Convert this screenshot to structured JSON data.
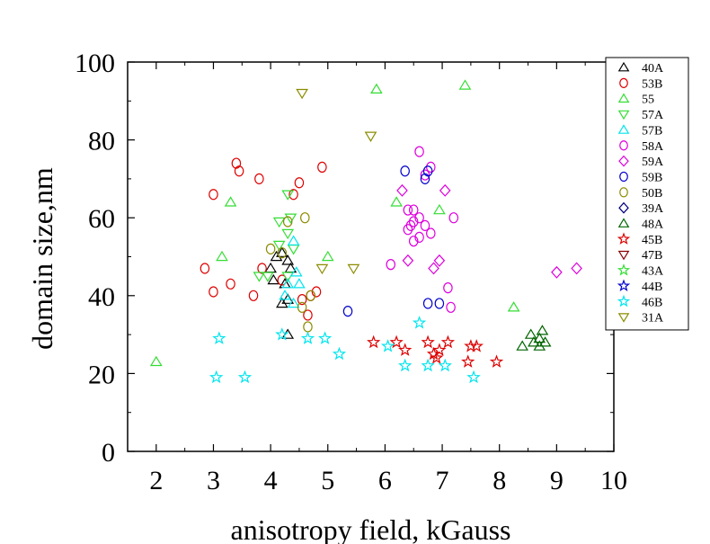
{
  "chart_data": {
    "type": "scatter",
    "title": "",
    "xlabel": "anisotropy field, kGauss",
    "ylabel": "domain size,nm",
    "xlim": [
      1.5,
      10
    ],
    "ylim": [
      0,
      100
    ],
    "xticks": [
      2,
      3,
      4,
      5,
      6,
      7,
      8,
      9,
      10
    ],
    "yticks": [
      0,
      20,
      40,
      60,
      80,
      100
    ],
    "grid": false,
    "legend_position": "right",
    "series": [
      {
        "name": "40A",
        "marker": "triangle-up",
        "color": "#000000",
        "points": [
          [
            4.0,
            47
          ],
          [
            4.1,
            50
          ],
          [
            4.2,
            51
          ],
          [
            4.3,
            49
          ],
          [
            4.35,
            47
          ],
          [
            4.05,
            44
          ],
          [
            4.25,
            43
          ],
          [
            4.3,
            39
          ],
          [
            4.2,
            38
          ],
          [
            4.3,
            30
          ]
        ]
      },
      {
        "name": "53B",
        "marker": "circle",
        "color": "#dd0000",
        "points": [
          [
            3.4,
            74
          ],
          [
            3.45,
            72
          ],
          [
            3.8,
            70
          ],
          [
            3.0,
            66
          ],
          [
            4.4,
            66
          ],
          [
            4.5,
            69
          ],
          [
            4.9,
            73
          ],
          [
            2.85,
            47
          ],
          [
            3.85,
            47
          ],
          [
            3.3,
            43
          ],
          [
            3.0,
            41
          ],
          [
            3.7,
            40
          ],
          [
            4.55,
            39
          ],
          [
            4.7,
            40
          ],
          [
            4.8,
            41
          ],
          [
            4.65,
            35
          ],
          [
            4.2,
            44
          ]
        ]
      },
      {
        "name": "55",
        "marker": "triangle-up",
        "color": "#33dd33",
        "points": [
          [
            5.85,
            93
          ],
          [
            7.4,
            94
          ],
          [
            3.3,
            64
          ],
          [
            6.2,
            64
          ],
          [
            6.95,
            62
          ],
          [
            3.15,
            50
          ],
          [
            5.0,
            50
          ],
          [
            8.25,
            37
          ],
          [
            2.0,
            23
          ]
        ]
      },
      {
        "name": "57A",
        "marker": "triangle-down",
        "color": "#33dd33",
        "points": [
          [
            4.3,
            66
          ],
          [
            4.15,
            59
          ],
          [
            4.35,
            60
          ],
          [
            4.3,
            56
          ],
          [
            4.15,
            53
          ],
          [
            4.4,
            52
          ],
          [
            3.8,
            45
          ],
          [
            3.95,
            45
          ],
          [
            4.3,
            45
          ]
        ]
      },
      {
        "name": "57B",
        "marker": "triangle-up",
        "color": "#00e5ee",
        "points": [
          [
            4.4,
            54
          ],
          [
            4.45,
            46
          ],
          [
            4.3,
            43
          ],
          [
            4.5,
            43
          ],
          [
            4.25,
            40
          ],
          [
            4.4,
            38
          ]
        ]
      },
      {
        "name": "58A",
        "marker": "circle",
        "color": "#dd00dd",
        "points": [
          [
            6.6,
            77
          ],
          [
            6.8,
            73
          ],
          [
            6.7,
            71
          ],
          [
            6.4,
            62
          ],
          [
            6.5,
            62
          ],
          [
            6.6,
            60
          ],
          [
            6.45,
            58
          ],
          [
            6.5,
            59
          ],
          [
            6.7,
            58
          ],
          [
            6.4,
            57
          ],
          [
            6.6,
            55
          ],
          [
            6.5,
            54
          ],
          [
            6.8,
            56
          ],
          [
            7.2,
            60
          ],
          [
            6.1,
            48
          ],
          [
            7.1,
            42
          ],
          [
            7.15,
            37
          ]
        ]
      },
      {
        "name": "59A",
        "marker": "diamond",
        "color": "#dd00dd",
        "points": [
          [
            6.3,
            67
          ],
          [
            7.05,
            67
          ],
          [
            6.4,
            49
          ],
          [
            6.85,
            47
          ],
          [
            6.95,
            49
          ],
          [
            9.0,
            46
          ],
          [
            9.35,
            47
          ]
        ]
      },
      {
        "name": "59B",
        "marker": "circle",
        "color": "#0000cc",
        "points": [
          [
            6.35,
            72
          ],
          [
            6.7,
            70
          ],
          [
            6.75,
            72
          ],
          [
            6.75,
            38
          ],
          [
            6.95,
            38
          ],
          [
            5.35,
            36
          ]
        ]
      },
      {
        "name": "50B",
        "marker": "circle",
        "color": "#8b8b00",
        "points": [
          [
            4.6,
            60
          ],
          [
            4.3,
            59
          ],
          [
            4.0,
            52
          ],
          [
            4.2,
            51
          ],
          [
            4.55,
            37
          ],
          [
            4.7,
            40
          ],
          [
            4.65,
            32
          ]
        ]
      },
      {
        "name": "39A",
        "marker": "diamond",
        "color": "#000080",
        "points": []
      },
      {
        "name": "48A",
        "marker": "triangle-up",
        "color": "#006400",
        "points": [
          [
            8.75,
            31
          ],
          [
            8.55,
            30
          ],
          [
            8.7,
            29
          ],
          [
            8.6,
            28
          ],
          [
            8.4,
            27
          ],
          [
            8.8,
            28
          ],
          [
            8.7,
            27
          ]
        ]
      },
      {
        "name": "45B",
        "marker": "star",
        "color": "#dd0000",
        "points": [
          [
            5.8,
            28
          ],
          [
            6.2,
            28
          ],
          [
            6.35,
            26
          ],
          [
            6.75,
            28
          ],
          [
            6.95,
            26
          ],
          [
            7.1,
            28
          ],
          [
            6.85,
            25
          ],
          [
            6.9,
            24
          ],
          [
            7.5,
            27
          ],
          [
            7.6,
            27
          ],
          [
            7.45,
            23
          ],
          [
            7.95,
            23
          ]
        ]
      },
      {
        "name": "47B",
        "marker": "triangle-down",
        "color": "#8b0000",
        "points": []
      },
      {
        "name": "43A",
        "marker": "star",
        "color": "#33dd33",
        "points": []
      },
      {
        "name": "44B",
        "marker": "star",
        "color": "#0000cc",
        "points": []
      },
      {
        "name": "46B",
        "marker": "star",
        "color": "#00e5ee",
        "points": [
          [
            3.1,
            29
          ],
          [
            4.2,
            30
          ],
          [
            4.65,
            29
          ],
          [
            4.95,
            29
          ],
          [
            5.2,
            25
          ],
          [
            6.05,
            27
          ],
          [
            6.6,
            33
          ],
          [
            3.05,
            19
          ],
          [
            3.55,
            19
          ],
          [
            6.35,
            22
          ],
          [
            6.75,
            22
          ],
          [
            7.05,
            22
          ],
          [
            7.55,
            19
          ]
        ]
      },
      {
        "name": "31A",
        "marker": "triangle-down",
        "color": "#8b8b00",
        "points": [
          [
            4.55,
            92
          ],
          [
            5.75,
            81
          ],
          [
            4.9,
            47
          ],
          [
            5.45,
            47
          ]
        ]
      }
    ]
  }
}
